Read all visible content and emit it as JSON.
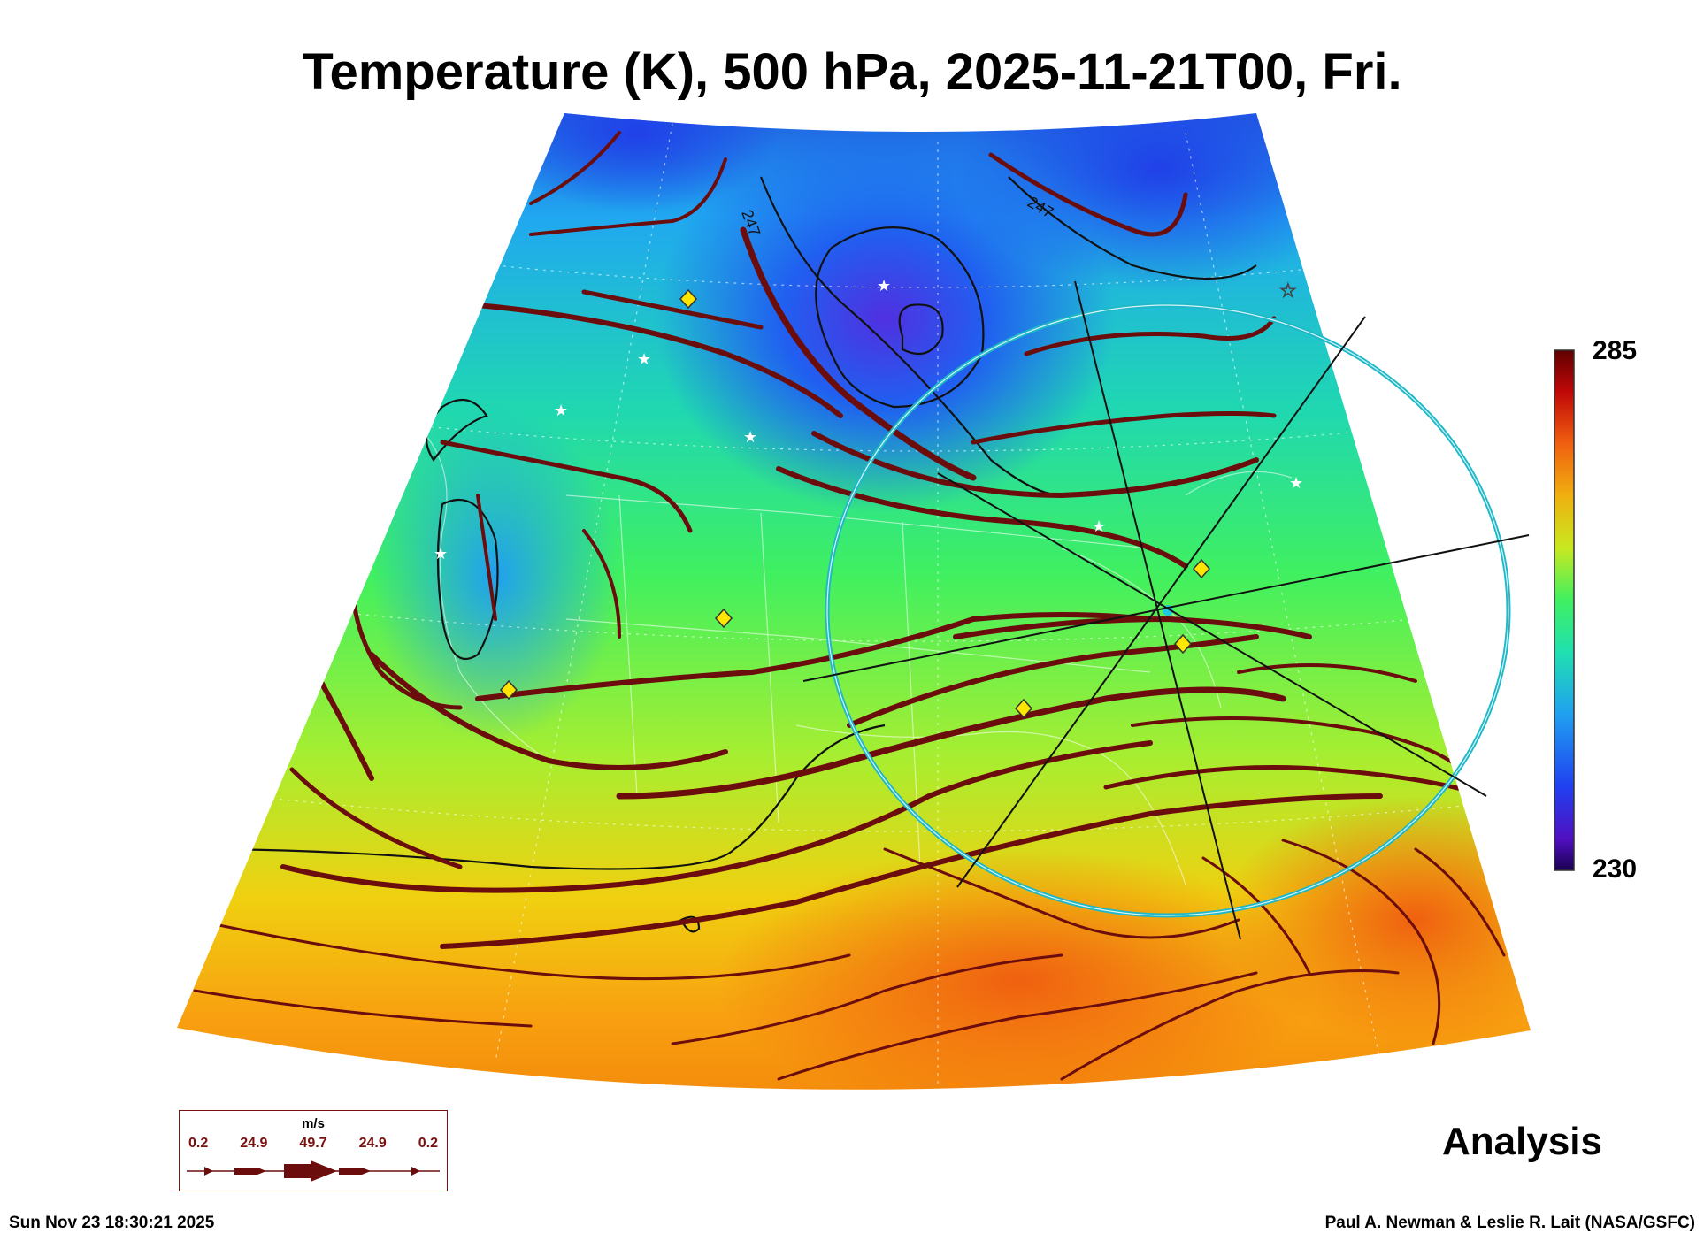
{
  "title": "Temperature (K), 500 hPa, 2025-11-21T00, Fri.",
  "colorbar": {
    "max": "285",
    "min": "230"
  },
  "contour_labels": [
    "247",
    "247"
  ],
  "product": "Analysis",
  "legend": {
    "unit": "m/s",
    "values": [
      "0.2",
      "24.9",
      "49.7",
      "24.9",
      "0.2"
    ]
  },
  "footer": {
    "timestamp": "Sun Nov 23 18:30:21 2025",
    "credit": "Paul A. Newman & Leslie R. Lait (NASA/GSFC)"
  },
  "colors": {
    "streamline": "#6b0d0d",
    "ring": "#1fb8c8",
    "marker_diamond": "#ffe600",
    "colormap": [
      "#2a0a7a",
      "#2040e0",
      "#20a0f0",
      "#20e0c0",
      "#40f060",
      "#c0e820",
      "#f0c010",
      "#f09010",
      "#e04010",
      "#800000"
    ]
  }
}
